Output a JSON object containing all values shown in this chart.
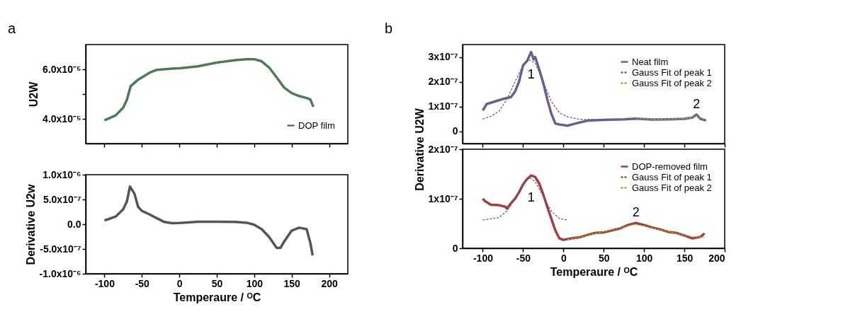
{
  "chart_data": [
    {
      "type": "line",
      "ylabel": "U2W",
      "annotations": [
        "a"
      ],
      "legend": "bottom right",
      "marker": "none",
      "grid": false,
      "tick_labels": "y",
      "xlim": [
        -125,
        225
      ],
      "xticks": [
        -100,
        -50,
        0,
        50,
        100,
        150,
        200
      ],
      "ylim": [
        3e-05,
        7e-05
      ],
      "yticks": [
        {
          "value": 4e-05,
          "label": "4.0x10⁻⁵"
        },
        {
          "value": 5e-05,
          "label": null
        },
        {
          "value": 6e-05,
          "label": "6.0x10⁻⁵"
        }
      ],
      "series": [
        {
          "name": "DOP film",
          "color": "#4f7a55",
          "line_style": "solid",
          "x": [
            -100,
            -85,
            -75,
            -70,
            -65,
            -55,
            -40,
            -30,
            -10,
            0,
            25,
            50,
            75,
            90,
            100,
            110,
            120,
            130,
            140,
            150,
            160,
            170,
            175,
            179
          ],
          "values": [
            3.94e-05,
            4.14e-05,
            4.45e-05,
            4.77e-05,
            5.32e-05,
            5.58e-05,
            5.86e-05,
            5.98e-05,
            6.03e-05,
            6.04e-05,
            6.12e-05,
            6.27e-05,
            6.37e-05,
            6.41e-05,
            6.41e-05,
            6.32e-05,
            6.07e-05,
            5.67e-05,
            5.26e-05,
            5.04e-05,
            4.92e-05,
            4.84e-05,
            4.78e-05,
            4.48e-05
          ]
        }
      ]
    },
    {
      "type": "line",
      "ylabel": "Derivative U2w",
      "xlabel": "Temperaure / ᴼC",
      "legend": false,
      "marker": "none",
      "grid": false,
      "xlim": [
        -125,
        225
      ],
      "xticks": [
        -100,
        -50,
        0,
        50,
        100,
        150,
        200
      ],
      "ylim": [
        -1e-06,
        1e-06
      ],
      "yticks": [
        {
          "value": -1e-06,
          "label": "-1.0x10⁻⁶"
        },
        {
          "value": -5e-07,
          "label": "-5.0x10⁻⁷"
        },
        {
          "value": 0,
          "label": "0.0"
        },
        {
          "value": 5e-07,
          "label": "5.0x10⁻⁷"
        },
        {
          "value": 1e-06,
          "label": "1.0x10⁻⁶"
        }
      ],
      "series": [
        {
          "color": "#555555",
          "line_style": "solid",
          "x": [
            -100,
            -95,
            -85,
            -75,
            -70,
            -66,
            -60,
            -55,
            -50,
            -40,
            -30,
            -20,
            -10,
            0,
            25,
            50,
            75,
            90,
            100,
            110,
            120,
            130,
            135,
            140,
            150,
            160,
            170,
            175,
            178
          ],
          "values": [
            7.7e-08,
            1e-07,
            1.55e-07,
            3e-07,
            4.6e-07,
            7.6e-07,
            6.2e-07,
            3.5e-07,
            2.7e-07,
            2e-07,
            1.2e-07,
            4.5e-08,
            2e-08,
            2.5e-08,
            5e-08,
            5e-08,
            4.5e-08,
            3e-08,
            -1e-08,
            -1e-07,
            -2.6e-07,
            -4.8e-07,
            -4.8e-07,
            -3.5e-07,
            -1.3e-07,
            -7e-08,
            -1e-07,
            -3.8e-07,
            -6.3e-07
          ]
        }
      ]
    },
    {
      "type": "line",
      "annotations": [
        "b",
        {
          "text": "1",
          "x": -40,
          "y": 3.2e-07
        },
        {
          "text": "2",
          "x": 165,
          "y": 6.7e-08
        }
      ],
      "legend": "top right",
      "marker": "none",
      "grid": false,
      "tick_labels": "y",
      "xlim": [
        -125,
        200
      ],
      "xticks": [
        -100,
        -50,
        0,
        50,
        100,
        150,
        200
      ],
      "ylim": [
        -5e-08,
        3.5e-07
      ],
      "yticks": [
        0,
        {
          "value": 1e-07,
          "label": "1x10⁻⁷"
        },
        {
          "value": 2e-07,
          "label": "2x10⁻⁷"
        },
        {
          "value": 3e-07,
          "label": "3x10⁻⁷"
        }
      ],
      "series": [
        {
          "name": "Neat film",
          "color": "#6f5f88",
          "line_style": "solid",
          "x": [
            -100,
            -95,
            -85,
            -75,
            -65,
            -60,
            -55,
            -50,
            -45,
            -40,
            -37,
            -35,
            -30,
            -25,
            -20,
            -15,
            -10,
            -5,
            5,
            15,
            30,
            50,
            75,
            90,
            110,
            130,
            150,
            160,
            165,
            170,
            177
          ],
          "values": [
            8.4e-08,
            1.1e-07,
            1.2e-07,
            1.3e-07,
            1.38e-07,
            1.6e-07,
            2e-07,
            2.66e-07,
            2.84e-07,
            3.2e-07,
            2.9e-07,
            3e-07,
            2.5e-07,
            1.95e-07,
            1.29e-07,
            7.1e-08,
            3.1e-08,
            2.7e-08,
            2.2e-08,
            3.1e-08,
            4.3e-08,
            4.6e-08,
            4.8e-08,
            5.1e-08,
            4.7e-08,
            4.8e-08,
            5e-08,
            5.5e-08,
            6.7e-08,
            5e-08,
            4.3e-08
          ]
        },
        {
          "name": "Gauss Fit of peak 1",
          "color": "#5064a0",
          "line_style": "dashed",
          "x": [
            -100,
            -90,
            -80,
            -70,
            -60,
            -50,
            -42,
            -35,
            -25,
            -15,
            -5,
            5,
            20,
            40,
            60
          ],
          "values": [
            4.9e-08,
            6e-08,
            8e-08,
            1.29e-07,
            2e-07,
            2.66e-07,
            2.88e-07,
            2.75e-07,
            2e-07,
            1.2e-07,
            7.5e-08,
            5.8e-08,
            4.8e-08,
            4.7e-08,
            4.6e-08
          ]
        },
        {
          "name": "Gauss Fit of peak 2",
          "color": "#8ab83a",
          "line_style": "dashed",
          "x": [
            90,
            120,
            150,
            160,
            165,
            170,
            177
          ],
          "values": [
            5e-08,
            4.8e-08,
            5e-08,
            5.6e-08,
            6.2e-08,
            5.5e-08,
            4.5e-08
          ]
        }
      ]
    },
    {
      "type": "line",
      "ylabel": "Derivative U2W",
      "xlabel": "Temperaure / ᴼC",
      "annotations": [
        {
          "text": "1",
          "x": -40,
          "y": 1.47e-07
        },
        {
          "text": "2",
          "x": 90,
          "y": 5.1e-08
        }
      ],
      "legend": "top right",
      "marker": "none",
      "grid": false,
      "xlim": [
        -125,
        200
      ],
      "xticks": [
        -100,
        -50,
        0,
        50,
        100,
        150,
        200
      ],
      "ylim": [
        0,
        2e-07
      ],
      "yticks": [
        0,
        {
          "value": 1e-07,
          "label": "1x10⁻⁷"
        },
        {
          "value": 2e-07,
          "label": "2x10⁻⁷"
        }
      ],
      "series": [
        {
          "name": "DOP-removed film",
          "color": "#a33f3f",
          "line_style": "solid",
          "x": [
            -100,
            -97,
            -90,
            -80,
            -72,
            -70,
            -65,
            -60,
            -55,
            -50,
            -45,
            -40,
            -35,
            -30,
            -25,
            -20,
            -15,
            -10,
            -5,
            0,
            10,
            20,
            30,
            40,
            50,
            60,
            70,
            80,
            90,
            100,
            110,
            120,
            130,
            140,
            150,
            160,
            170,
            175
          ],
          "values": [
            1e-07,
            9.5e-08,
            8.8e-08,
            8.7e-08,
            8.4e-08,
            8e-08,
            9.1e-08,
            1e-07,
            1.13e-07,
            1.29e-07,
            1.4e-07,
            1.47e-07,
            1.44e-07,
            1.31e-07,
            1.09e-07,
            8.4e-08,
            6e-08,
            3.6e-08,
            2e-08,
            1.7e-08,
            2e-08,
            2.2e-08,
            2.7e-08,
            3.1e-08,
            3.2e-08,
            3.6e-08,
            4e-08,
            4.7e-08,
            5.1e-08,
            4.7e-08,
            4.2e-08,
            3.8e-08,
            3.3e-08,
            3.1e-08,
            2.6e-08,
            2e-08,
            2.3e-08,
            3e-08
          ]
        },
        {
          "name": "Gauss Fit of peak 1",
          "color": "#5064a0",
          "line_style": "dashed",
          "x": [
            -100,
            -80,
            -70,
            -60,
            -50,
            -42,
            -35,
            -25,
            -15,
            -5,
            5
          ],
          "values": [
            5.7e-08,
            6.2e-08,
            7.5e-08,
            1e-07,
            1.3e-07,
            1.42e-07,
            1.35e-07,
            1.05e-07,
            7.5e-08,
            6e-08,
            5.7e-08
          ]
        },
        {
          "name": "Gauss Fit of peak 2",
          "color": "#8ab83a",
          "line_style": "dashed",
          "x": [
            5,
            20,
            40,
            60,
            75,
            88,
            100,
            120,
            140,
            160,
            175
          ],
          "values": [
            1.8e-08,
            2.2e-08,
            3e-08,
            3.7e-08,
            4.3e-08,
            4.8e-08,
            4.5e-08,
            3.7e-08,
            3e-08,
            2.3e-08,
            2.2e-08
          ]
        }
      ]
    }
  ]
}
